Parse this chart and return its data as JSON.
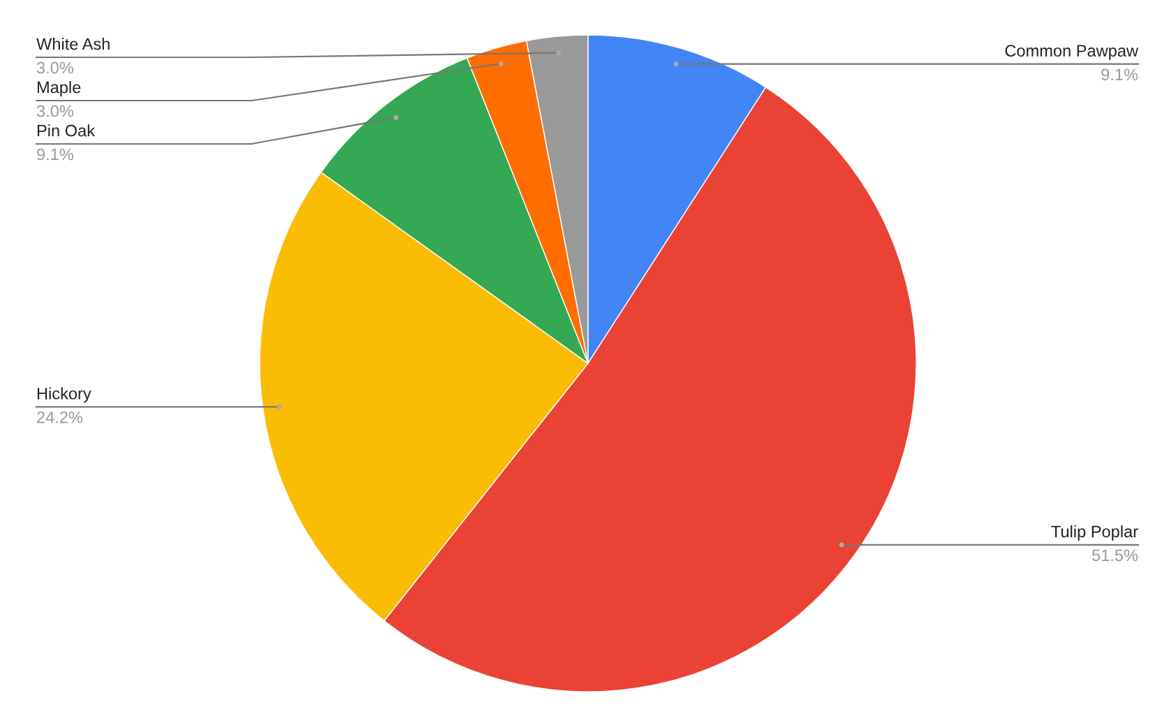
{
  "chart_data": {
    "type": "pie",
    "categories": [
      "Common Pawpaw",
      "Tulip Poplar",
      "Hickory",
      "Pin Oak",
      "Maple",
      "White Ash"
    ],
    "values": [
      9.1,
      51.5,
      24.2,
      9.1,
      3.0,
      3.0
    ],
    "colors": [
      "#4285f4",
      "#ea4335",
      "#fbbc04",
      "#34a853",
      "#ff6d01",
      "#999999"
    ],
    "value_labels": [
      "9.1%",
      "51.5%",
      "24.2%",
      "9.1%",
      "3.0%",
      "3.0%"
    ],
    "legend": false
  }
}
